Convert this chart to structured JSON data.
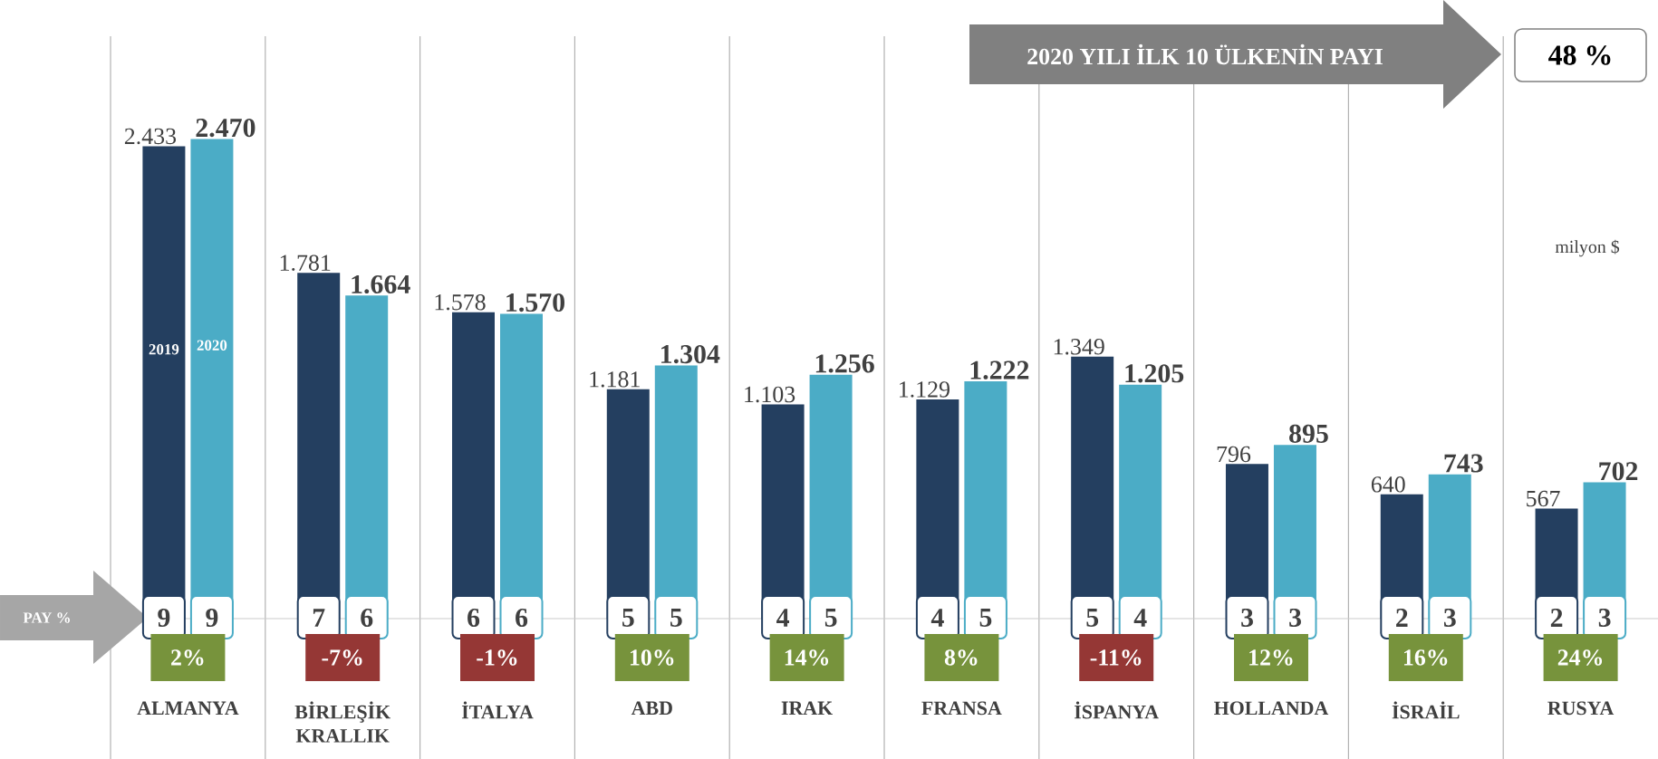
{
  "chart_data": {
    "type": "bar",
    "categories": [
      "ALMANYA",
      "BİRLEŞİK KRALLIK",
      "İTALYA",
      "ABD",
      "IRAK",
      "FRANSA",
      "İSPANYA",
      "HOLLANDA",
      "İSRAİL",
      "RUSYA"
    ],
    "series": [
      {
        "name": "2019",
        "color": "#243f60",
        "values": [
          2433,
          1781,
          1578,
          1181,
          1103,
          1129,
          1349,
          796,
          640,
          567
        ],
        "value_labels": [
          "2.433",
          "1.781",
          "1.578",
          "1.181",
          "1.103",
          "1.129",
          "1.349",
          "796",
          "640",
          "567"
        ]
      },
      {
        "name": "2020",
        "color": "#4bacc6",
        "values": [
          2470,
          1664,
          1570,
          1304,
          1256,
          1222,
          1205,
          895,
          743,
          702
        ],
        "value_labels": [
          "2.470",
          "1.664",
          "1.570",
          "1.304",
          "1.256",
          "1.222",
          "1.205",
          "895",
          "743",
          "702"
        ]
      }
    ],
    "annotations": [
      "2020 YILI İLK 10 ÜLKENİN PAYI",
      "48 %",
      "milyon $",
      "PAY %",
      "9",
      "9",
      "7",
      "6",
      "6",
      "6",
      "5",
      "5",
      "4",
      "5",
      "4",
      "5",
      "5",
      "4",
      "3",
      "3",
      "2",
      "3",
      "2",
      "3",
      "2%",
      "-7%",
      "-1%",
      "10%",
      "14%",
      "8%",
      "-11%",
      "12%",
      "16%",
      "24%"
    ]
  }
}
